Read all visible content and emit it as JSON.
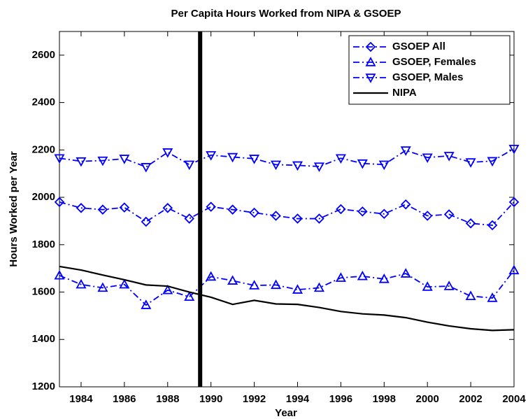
{
  "chart_data": {
    "type": "line",
    "title": "Per Capita Hours Worked from NIPA & GSOEP",
    "x_label": "Year",
    "y_label": "Hours Worked per Year",
    "x": [
      1983,
      1984,
      1985,
      1986,
      1987,
      1988,
      1989,
      1990,
      1991,
      1992,
      1993,
      1994,
      1995,
      1996,
      1997,
      1998,
      1999,
      2000,
      2001,
      2002,
      2003,
      2004
    ],
    "series": [
      {
        "name": "GSOEP All",
        "color": "#0000ff",
        "marker": "diamond",
        "dash": "dash-dot",
        "values": [
          1980,
          1955,
          1948,
          1957,
          1897,
          1955,
          1910,
          1960,
          1948,
          1935,
          1922,
          1910,
          1910,
          1950,
          1940,
          1930,
          1970,
          1922,
          1928,
          1890,
          1882,
          1980
        ]
      },
      {
        "name": "GSOEP, Females",
        "color": "#0000ff",
        "marker": "triangle-up",
        "dash": "dash-dot",
        "values": [
          1670,
          1632,
          1618,
          1632,
          1545,
          1608,
          1580,
          1665,
          1648,
          1628,
          1630,
          1610,
          1618,
          1660,
          1667,
          1655,
          1678,
          1622,
          1625,
          1583,
          1575,
          1692
        ]
      },
      {
        "name": "GSOEP, Males",
        "color": "#0000ff",
        "marker": "triangle-down",
        "dash": "dash-dot",
        "values": [
          2165,
          2152,
          2155,
          2163,
          2128,
          2190,
          2138,
          2178,
          2170,
          2163,
          2138,
          2135,
          2130,
          2165,
          2143,
          2138,
          2198,
          2168,
          2175,
          2148,
          2153,
          2205
        ]
      },
      {
        "name": "NIPA",
        "color": "#000000",
        "marker": "none",
        "dash": "solid",
        "values": [
          1708,
          1693,
          1672,
          1652,
          1630,
          1625,
          1600,
          1578,
          1548,
          1565,
          1550,
          1548,
          1535,
          1518,
          1508,
          1503,
          1492,
          1473,
          1457,
          1445,
          1438,
          1441
        ]
      }
    ],
    "vline": 1989.5,
    "xlim": [
      1983,
      2004
    ],
    "xticks": [
      1984,
      1986,
      1988,
      1990,
      1992,
      1994,
      1996,
      1998,
      2000,
      2002,
      2004
    ],
    "ylim": [
      1200,
      2700
    ],
    "yticks": [
      1200,
      1400,
      1600,
      1800,
      2000,
      2200,
      2400,
      2600
    ],
    "legend": "top-right"
  }
}
